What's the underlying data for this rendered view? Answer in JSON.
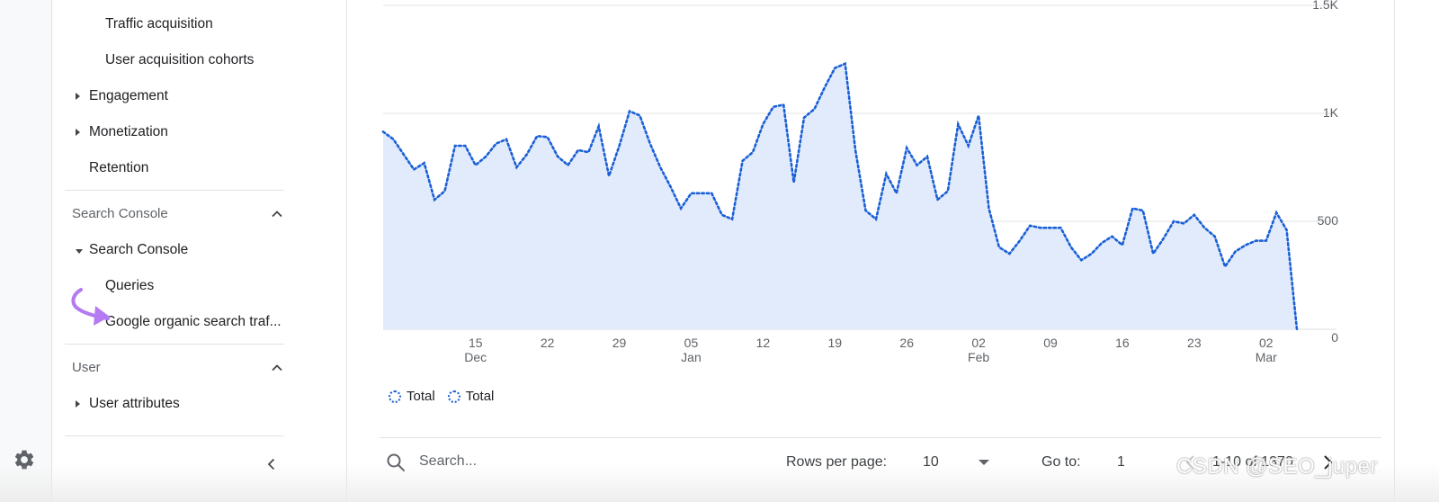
{
  "sidebar": {
    "items": [
      {
        "label": "Traffic acquisition"
      },
      {
        "label": "User acquisition cohorts"
      },
      {
        "label": "Engagement"
      },
      {
        "label": "Monetization"
      },
      {
        "label": "Retention"
      }
    ],
    "search_console": {
      "header": "Search Console",
      "group_label": "Search Console",
      "children": [
        {
          "label": "Queries"
        },
        {
          "label": "Google organic search traf..."
        }
      ]
    },
    "user": {
      "header": "User",
      "children": [
        {
          "label": "User attributes"
        }
      ]
    }
  },
  "legend": [
    {
      "label": "Total"
    },
    {
      "label": "Total"
    }
  ],
  "table_footer": {
    "search_placeholder": "Search...",
    "rows_per_page_label": "Rows per page:",
    "rows_per_page_value": "10",
    "goto_label": "Go to:",
    "goto_value": "1",
    "range_text": "1-10 of 1370"
  },
  "watermark": "CSDN @SEO_juper",
  "colors": {
    "line": "#1a5fd6",
    "area_fill": "#e1ebfb",
    "accent_arrow": "#b57bf2"
  },
  "chart_data": {
    "type": "area",
    "series": [
      {
        "name": "Total",
        "values": [
          915,
          880,
          810,
          740,
          770,
          600,
          640,
          850,
          850,
          760,
          800,
          860,
          880,
          750,
          810,
          895,
          890,
          800,
          760,
          830,
          820,
          940,
          710,
          850,
          1010,
          990,
          860,
          750,
          660,
          560,
          630,
          630,
          630,
          530,
          510,
          780,
          820,
          950,
          1030,
          1040,
          680,
          980,
          1020,
          1120,
          1210,
          1230,
          830,
          550,
          510,
          720,
          630,
          840,
          760,
          800,
          600,
          640,
          950,
          850,
          990,
          560,
          380,
          350,
          410,
          480,
          470,
          470,
          470,
          380,
          320,
          350,
          400,
          430,
          390,
          560,
          550,
          350,
          420,
          500,
          490,
          530,
          470,
          430,
          290,
          360,
          390,
          410,
          410,
          540,
          460,
          0
        ]
      }
    ],
    "x_tick_labels": [
      {
        "day": "15",
        "month": "Dec"
      },
      {
        "day": "22",
        "month": ""
      },
      {
        "day": "29",
        "month": ""
      },
      {
        "day": "05",
        "month": "Jan"
      },
      {
        "day": "12",
        "month": ""
      },
      {
        "day": "19",
        "month": ""
      },
      {
        "day": "26",
        "month": ""
      },
      {
        "day": "02",
        "month": "Feb"
      },
      {
        "day": "09",
        "month": ""
      },
      {
        "day": "16",
        "month": ""
      },
      {
        "day": "23",
        "month": ""
      },
      {
        "day": "02",
        "month": "Mar"
      }
    ],
    "y_tick_labels": [
      "0",
      "500",
      "1K",
      "1.5K"
    ],
    "y_ticks": [
      0,
      500,
      1000,
      1500
    ],
    "ylim": [
      0,
      1500
    ],
    "grid": true,
    "y_axis_side": "right",
    "legend_position": "bottom-left"
  }
}
